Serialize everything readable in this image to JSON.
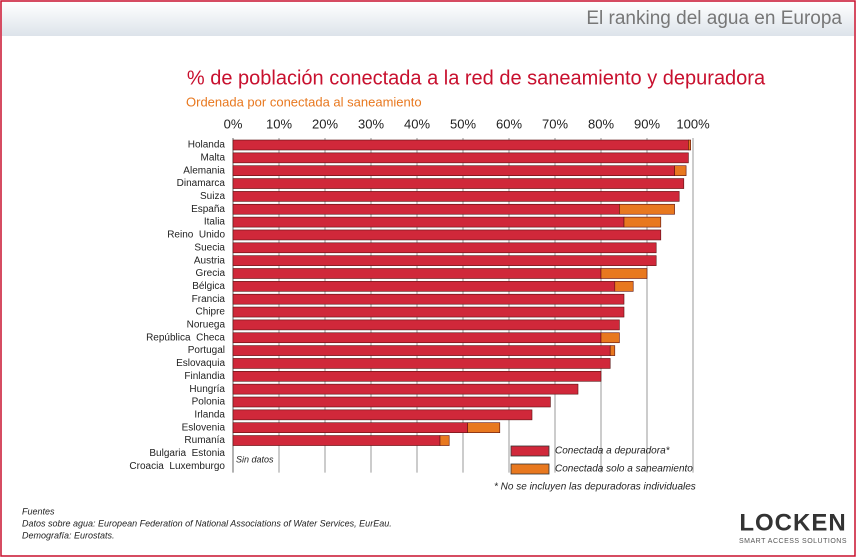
{
  "header": {
    "title": "El ranking del agua en Europa"
  },
  "chart_data": {
    "type": "stacked-bar-horizontal",
    "title": "% de población conectada a la red de saneamiento y depuradora",
    "subtitle": "Ordenada por conectada al saneamiento",
    "categories": [
      "Holanda",
      "Malta",
      "Alemania",
      "Dinamarca",
      "Suiza",
      "España",
      "Italia",
      "Reino  Unido",
      "Suecia",
      "Austria",
      "Grecia",
      "Bélgica",
      "Francia",
      "Chipre",
      "Noruega",
      "República  Checa",
      "Portugal",
      "Eslovaquia",
      "Finlandia",
      "Hungría",
      "Polonia",
      "Irlanda",
      "Eslovenia",
      "Rumanía",
      "Bulgaria  Estonia",
      "Croacia  Luxemburgo"
    ],
    "series": [
      {
        "name": "Conectada a depuradora*",
        "color": "#d0283a",
        "values": [
          99,
          99,
          96,
          98,
          97,
          84,
          85,
          93,
          92,
          92,
          80,
          83,
          85,
          85,
          84,
          80,
          82,
          82,
          80,
          75,
          69,
          65,
          51,
          45,
          null,
          null
        ]
      },
      {
        "name": "Conectada solo a saneamiento",
        "color": "#e8781f",
        "values": [
          0.5,
          0,
          2.5,
          0,
          0,
          12,
          8,
          0,
          0,
          0,
          10,
          4,
          0,
          0,
          0,
          4,
          1,
          0,
          0,
          0,
          0,
          0,
          7,
          2,
          null,
          null
        ]
      }
    ],
    "annotation": "Sin datos",
    "footnote": "* No se incluyen las depuradoras individuales",
    "xlim": [
      0,
      100
    ],
    "xticks": [
      {
        "value": 0,
        "label": "0%"
      },
      {
        "value": 10,
        "label": "10%"
      },
      {
        "value": 20,
        "label": "20%"
      },
      {
        "value": 30,
        "label": "30%"
      },
      {
        "value": 40,
        "label": "40%"
      },
      {
        "value": 50,
        "label": "50%"
      },
      {
        "value": 60,
        "label": "60%"
      },
      {
        "value": 70,
        "label": "70%"
      },
      {
        "value": 80,
        "label": "80%"
      },
      {
        "value": 90,
        "label": "90%"
      },
      {
        "value": 100,
        "label": "100%"
      }
    ],
    "grid": true
  },
  "sources": {
    "title": "Fuentes",
    "lines": [
      "Datos sobre agua: European Federation of National Associations of Water Services, EurEau.",
      "Demografía: Eurostats."
    ]
  },
  "logo": {
    "name": "LOCKEN",
    "tagline": "SMART ACCESS SOLUTIONS"
  }
}
